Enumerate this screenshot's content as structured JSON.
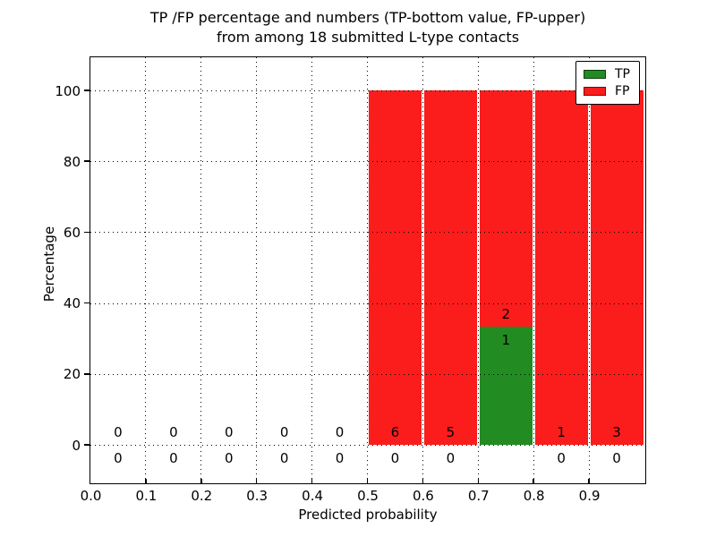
{
  "chart_data": {
    "type": "bar",
    "stacked": true,
    "title_line1": "TP /FP percentage and numbers (TP-bottom value, FP-upper)",
    "title_line2": "from among 18 submitted L-type contacts",
    "xlabel": "Predicted probability",
    "ylabel": "Percentage",
    "total_submitted": 18,
    "bin_width": 0.1,
    "bin_starts": [
      0.0,
      0.1,
      0.2,
      0.3,
      0.4,
      0.5,
      0.6,
      0.7,
      0.8,
      0.9
    ],
    "x_tick_labels": [
      "0.0",
      "0.1",
      "0.2",
      "0.3",
      "0.4",
      "0.5",
      "0.6",
      "0.7",
      "0.8",
      "0.9"
    ],
    "y_ticks": [
      0,
      20,
      40,
      60,
      80,
      100
    ],
    "xlim": [
      0.0,
      1.0
    ],
    "ylim": [
      -11,
      109
    ],
    "grid": "dotted",
    "legend_position": "upper right",
    "series": [
      {
        "name": "TP",
        "color": "#228b22",
        "counts": [
          0,
          0,
          0,
          0,
          0,
          0,
          0,
          1,
          0,
          0
        ],
        "percent": [
          0,
          0,
          0,
          0,
          0,
          0,
          0,
          33.33,
          0,
          0
        ]
      },
      {
        "name": "FP",
        "color": "#fb1c1c",
        "counts": [
          0,
          0,
          0,
          0,
          0,
          6,
          5,
          2,
          1,
          3
        ],
        "percent": [
          0,
          0,
          0,
          0,
          0,
          100,
          100,
          66.67,
          100,
          100
        ]
      }
    ]
  },
  "colors": {
    "tp": "#228b22",
    "fp": "#fb1c1c",
    "grid": "#000000",
    "text": "#000000",
    "background": "#ffffff"
  }
}
